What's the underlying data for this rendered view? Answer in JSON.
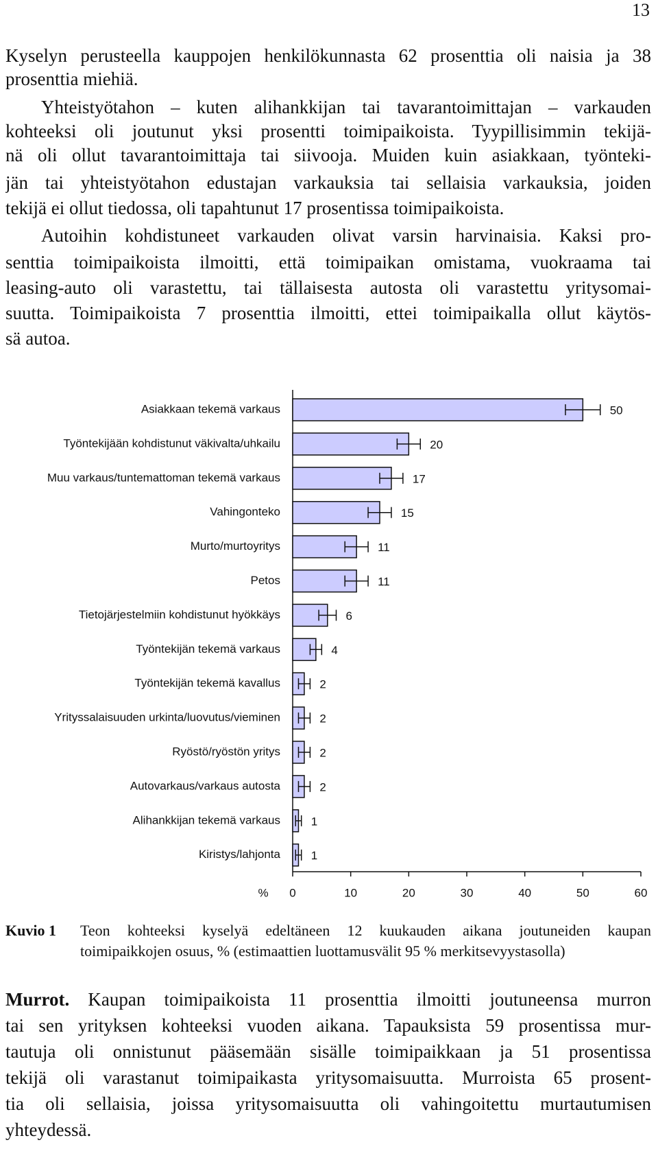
{
  "page_number": "13",
  "paragraphs": [
    {
      "lines": [
        "Kyselyn perusteella kauppojen henkilökunnasta 62 prosenttia oli naisia ja 38",
        "prosenttia miehiä."
      ]
    },
    {
      "lines": [
        "Yhteistyötahon – kuten alihankkijan tai tavarantoimittajan – varkauden",
        "kohteeksi oli joutunut yksi prosentti toimipaikoista. Tyypillisimmin tekijä-",
        "nä oli ollut tavarantoimittaja tai siivooja. Muiden kuin asiakkaan, työnteki-",
        "jän tai yhteistyötahon edustajan varkauksia tai sellaisia varkauksia, joiden",
        "tekijä ei ollut tiedossa, oli tapahtunut 17 prosentissa toimipaikoista."
      ]
    },
    {
      "lines": [
        "Autoihin kohdistuneet varkauden olivat varsin harvinaisia. Kaksi pro-",
        "senttia toimipaikoista ilmoitti, että toimipaikan omistama, vuokraama tai",
        "leasing-auto oli varastettu, tai tällaisesta autosta oli varastettu yritysomai-",
        "suutta. Toimipaikoista 7 prosenttia ilmoitti, ettei toimipaikalla ollut käytös-",
        "sä autoa."
      ]
    }
  ],
  "chart_data": {
    "type": "hbar",
    "categories": [
      "Asiakkaan tekemä varkaus",
      "Työntekijään kohdistunut väkivalta/uhkailu",
      "Muu varkaus/tuntemattoman tekemä varkaus",
      "Vahingonteko",
      "Murto/murtoyritys",
      "Petos",
      "Tietojärjestelmiin kohdistunut hyökkäys",
      "Työntekijän tekemä varkaus",
      "Työntekijän tekemä kavallus",
      "Yrityssalaisuuden urkinta/luovutus/vieminen",
      "Ryöstö/ryöstön yritys",
      "Autovarkaus/varkaus autosta",
      "Alihankkijan tekemä varkaus",
      "Kiristys/lahjonta"
    ],
    "values": [
      50,
      20,
      17,
      15,
      11,
      11,
      6,
      4,
      2,
      2,
      2,
      2,
      1,
      1
    ],
    "errors": [
      3,
      2,
      2,
      2,
      2,
      2,
      1.5,
      1,
      1,
      1,
      1,
      1,
      0.5,
      0.5
    ],
    "color": "#ccccff",
    "x_label": "%",
    "xlim": [
      0,
      60
    ],
    "xticks": [
      0,
      10,
      20,
      30,
      40,
      50,
      60
    ]
  },
  "caption": {
    "label": "Kuvio 1",
    "lines": [
      "Teon kohteeksi kyselyä edeltäneen 12 kuukauden aikana joutuneiden kaupan",
      "toimipaikkojen osuus, % (estimaattien luottamusvälit 95 % merkitsevyystasolla)"
    ]
  },
  "final_paragraph": {
    "heading": "Murrot.",
    "lines": [
      "Kaupan toimipaikoista 11 prosenttia ilmoitti joutuneensa murron",
      "tai sen yrityksen kohteeksi vuoden aikana. Tapauksista 59 prosentissa mur-",
      "tautuja oli onnistunut pääsemään sisälle toimipaikkaan ja 51 prosentissa",
      "tekijä oli varastanut toimipaikasta yritysomaisuutta. Murroista 65 prosent-",
      "tia oli sellaisia, joissa yritysomaisuutta oli vahingoitettu murtautumisen",
      "yhteydessä."
    ]
  }
}
